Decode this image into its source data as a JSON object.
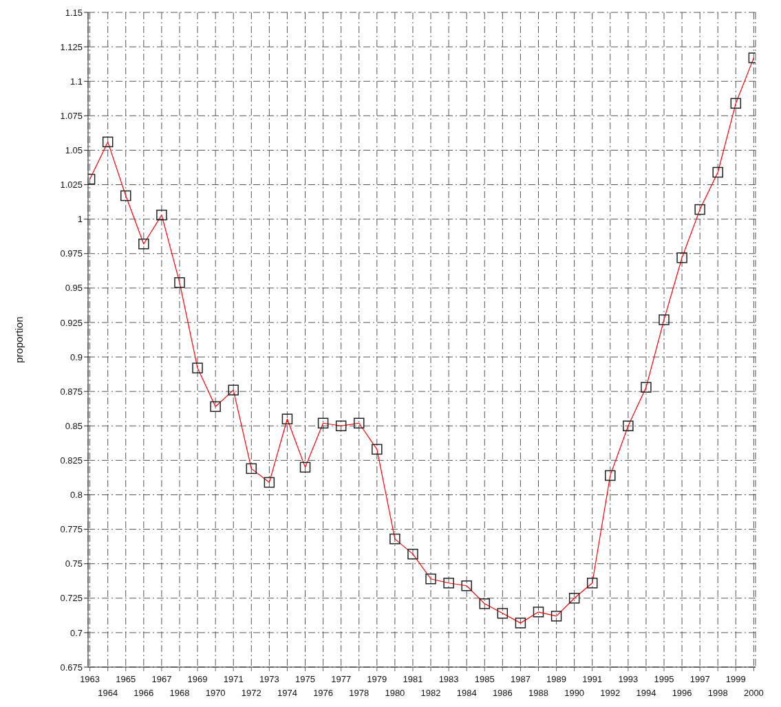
{
  "chart_data": {
    "type": "line",
    "ylabel": "proportion",
    "categories": [
      "1963",
      "1964",
      "1965",
      "1966",
      "1967",
      "1968",
      "1969",
      "1970",
      "1971",
      "1972",
      "1973",
      "1974",
      "1975",
      "1976",
      "1977",
      "1978",
      "1979",
      "1980",
      "1981",
      "1982",
      "1983",
      "1984",
      "1985",
      "1986",
      "1987",
      "1988",
      "1989",
      "1990",
      "1991",
      "1992",
      "1993",
      "1994",
      "1995",
      "1996",
      "1997",
      "1998",
      "1999",
      "2000"
    ],
    "series": [
      {
        "color": "#ff0000",
        "values": [
          1.029,
          1.056,
          1.017,
          0.982,
          1.003,
          0.954,
          0.892,
          0.864,
          0.876,
          0.819,
          0.809,
          0.855,
          0.82,
          0.852,
          0.85,
          0.852,
          0.833,
          0.768,
          0.757,
          0.739,
          0.736,
          0.734,
          0.721,
          0.714,
          0.707,
          0.715,
          0.712,
          0.725,
          0.736,
          0.814,
          0.85,
          0.878,
          0.927,
          0.972,
          1.007,
          1.034,
          1.084,
          1.117
        ]
      }
    ],
    "ylim": [
      0.675,
      1.15
    ],
    "yticks": [
      0.675,
      0.7,
      0.725,
      0.75,
      0.775,
      0.8,
      0.825,
      0.85,
      0.875,
      0.9,
      0.925,
      0.95,
      0.975,
      1,
      1.025,
      1.05,
      1.075,
      1.1,
      1.125,
      1.15
    ],
    "grid": true,
    "marker": "square",
    "line_style": "solid",
    "legend": false
  }
}
